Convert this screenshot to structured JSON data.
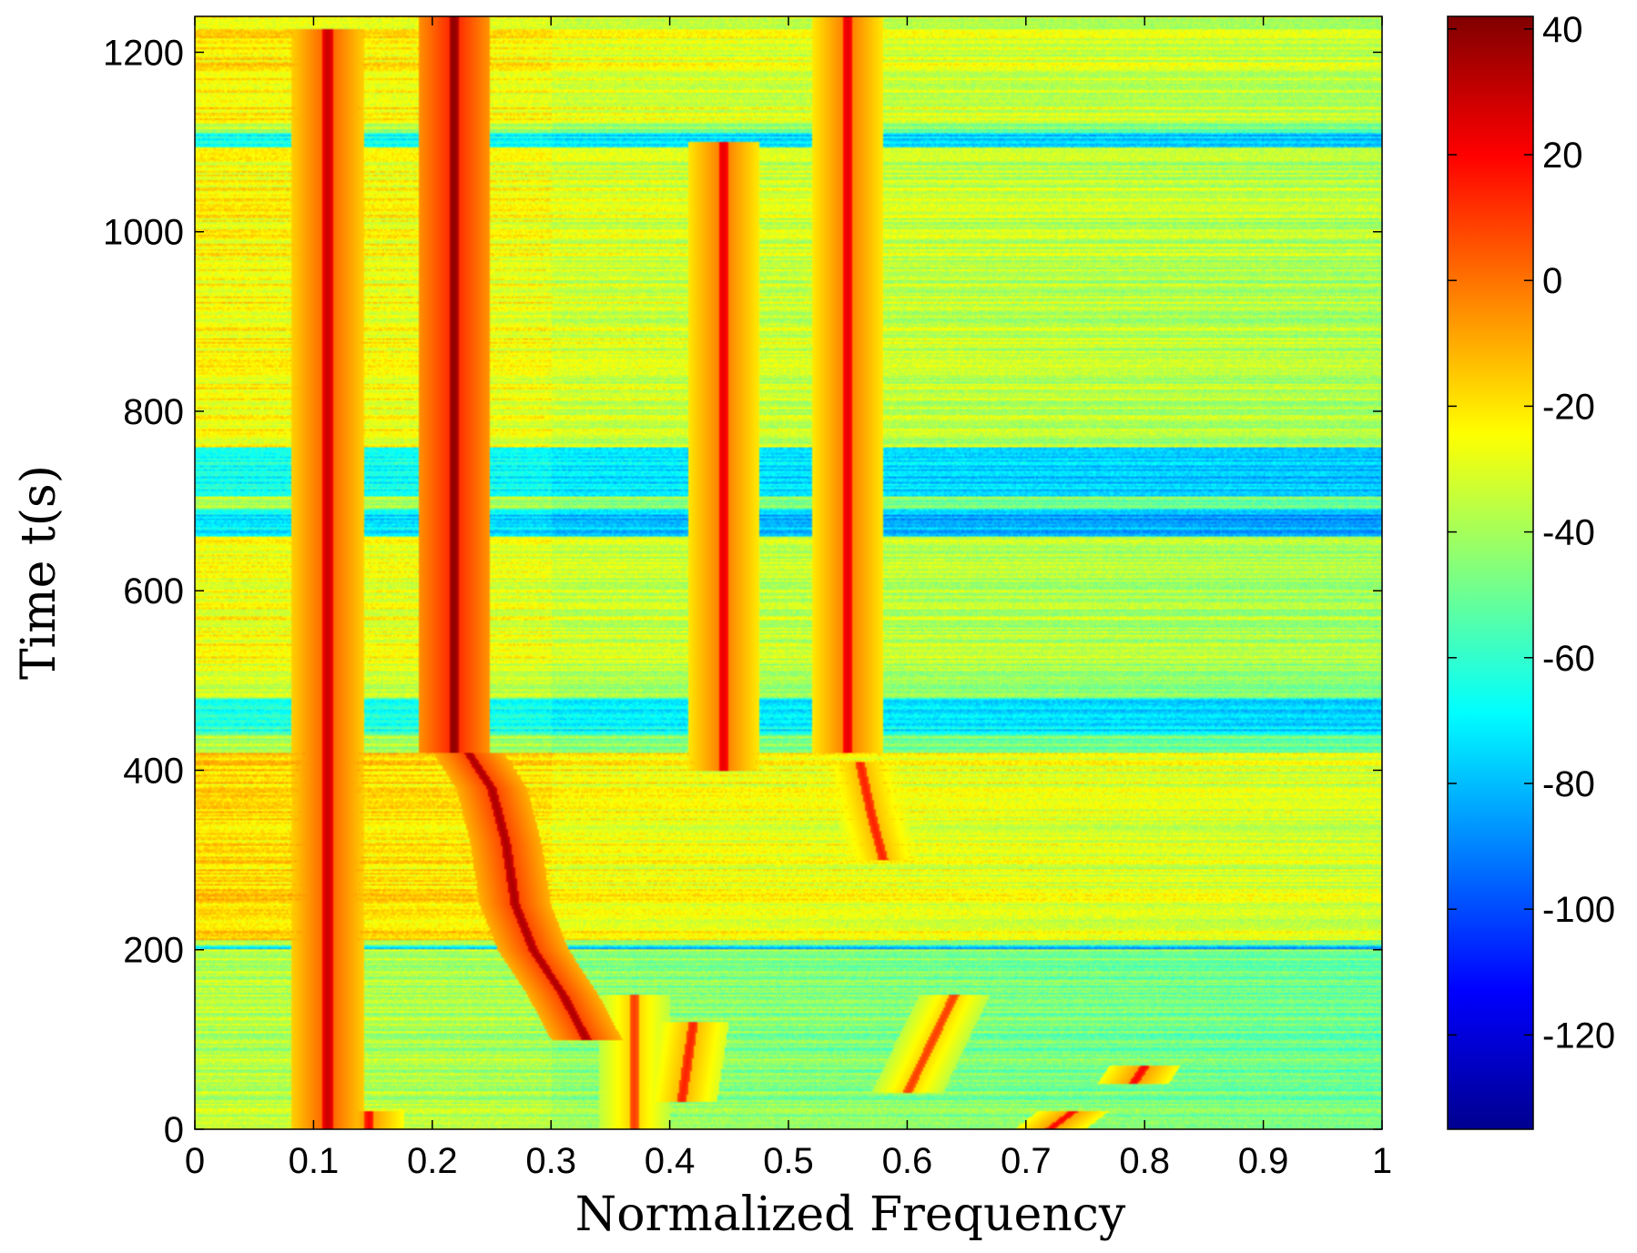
{
  "chart_data": {
    "type": "heatmap",
    "title": "",
    "xlabel": "Normalized Frequency",
    "ylabel": "Time t(s)",
    "xlim": [
      0,
      1
    ],
    "ylim": [
      0,
      1240
    ],
    "x_ticks": [
      0,
      0.1,
      0.2,
      0.3,
      0.4,
      0.5,
      0.6,
      0.7,
      0.8,
      0.9,
      1
    ],
    "x_tick_labels": [
      "0",
      "0.1",
      "0.2",
      "0.3",
      "0.4",
      "0.5",
      "0.6",
      "0.7",
      "0.8",
      "0.9",
      "1"
    ],
    "y_ticks": [
      0,
      200,
      400,
      600,
      800,
      1000,
      1200
    ],
    "y_tick_labels": [
      "0",
      "200",
      "400",
      "600",
      "800",
      "1000",
      "1200"
    ],
    "colorbar": {
      "colormap": "jet",
      "range": [
        -135,
        42
      ],
      "ticks": [
        40,
        20,
        0,
        -20,
        -40,
        -60,
        -80,
        -100,
        -120
      ],
      "tick_labels": [
        "40",
        "20",
        "0",
        "-20",
        "-40",
        "-60",
        "-80",
        "-100",
        "-120"
      ]
    },
    "background_level_db": -40,
    "ridges": [
      {
        "points": [
          [
            0.112,
            0
          ],
          [
            0.112,
            1225
          ]
        ],
        "level_db": 30,
        "note": "steady line"
      },
      {
        "points": [
          [
            0.218,
            420
          ],
          [
            0.218,
            1240
          ]
        ],
        "level_db": 40
      },
      {
        "points": [
          [
            0.23,
            420
          ],
          [
            0.25,
            380
          ],
          [
            0.262,
            320
          ],
          [
            0.27,
            250
          ],
          [
            0.285,
            200
          ],
          [
            0.31,
            150
          ],
          [
            0.33,
            100
          ]
        ],
        "level_db": 35
      },
      {
        "points": [
          [
            0.445,
            400
          ],
          [
            0.445,
            1100
          ]
        ],
        "level_db": 25
      },
      {
        "points": [
          [
            0.55,
            420
          ],
          [
            0.55,
            1240
          ]
        ],
        "level_db": 25
      },
      {
        "points": [
          [
            0.56,
            410
          ],
          [
            0.57,
            350
          ],
          [
            0.58,
            300
          ]
        ],
        "level_db": 15
      },
      {
        "points": [
          [
            0.37,
            0
          ],
          [
            0.37,
            150
          ]
        ],
        "level_db": 10
      },
      {
        "points": [
          [
            0.41,
            30
          ],
          [
            0.42,
            120
          ]
        ],
        "level_db": 15
      },
      {
        "points": [
          [
            0.6,
            40
          ],
          [
            0.64,
            150
          ],
          [
            0.655,
            120
          ]
        ],
        "level_db": 10
      },
      {
        "points": [
          [
            0.72,
            0
          ],
          [
            0.74,
            20
          ]
        ],
        "level_db": 20
      },
      {
        "points": [
          [
            0.79,
            50
          ],
          [
            0.8,
            70
          ]
        ],
        "level_db": 20
      },
      {
        "points": [
          [
            0.147,
            0
          ],
          [
            0.147,
            20
          ]
        ],
        "level_db": 20
      }
    ],
    "low_power_bands": [
      {
        "t": [
          705,
          760
        ],
        "level_db": -70
      },
      {
        "t": [
          660,
          690
        ],
        "level_db": -75
      },
      {
        "t": [
          440,
          480
        ],
        "level_db": -65
      },
      {
        "t": [
          1095,
          1110
        ],
        "level_db": -70
      },
      {
        "t": [
          200,
          205
        ],
        "level_db": -75
      }
    ],
    "high_power_bands": [
      {
        "t": [
          1120,
          1240
        ],
        "level_db": -25
      },
      {
        "t": [
          760,
          1095
        ],
        "level_db": -28
      },
      {
        "t": [
          210,
          420
        ],
        "level_db": -22
      },
      {
        "t": [
          500,
          660
        ],
        "level_db": -30
      }
    ]
  }
}
